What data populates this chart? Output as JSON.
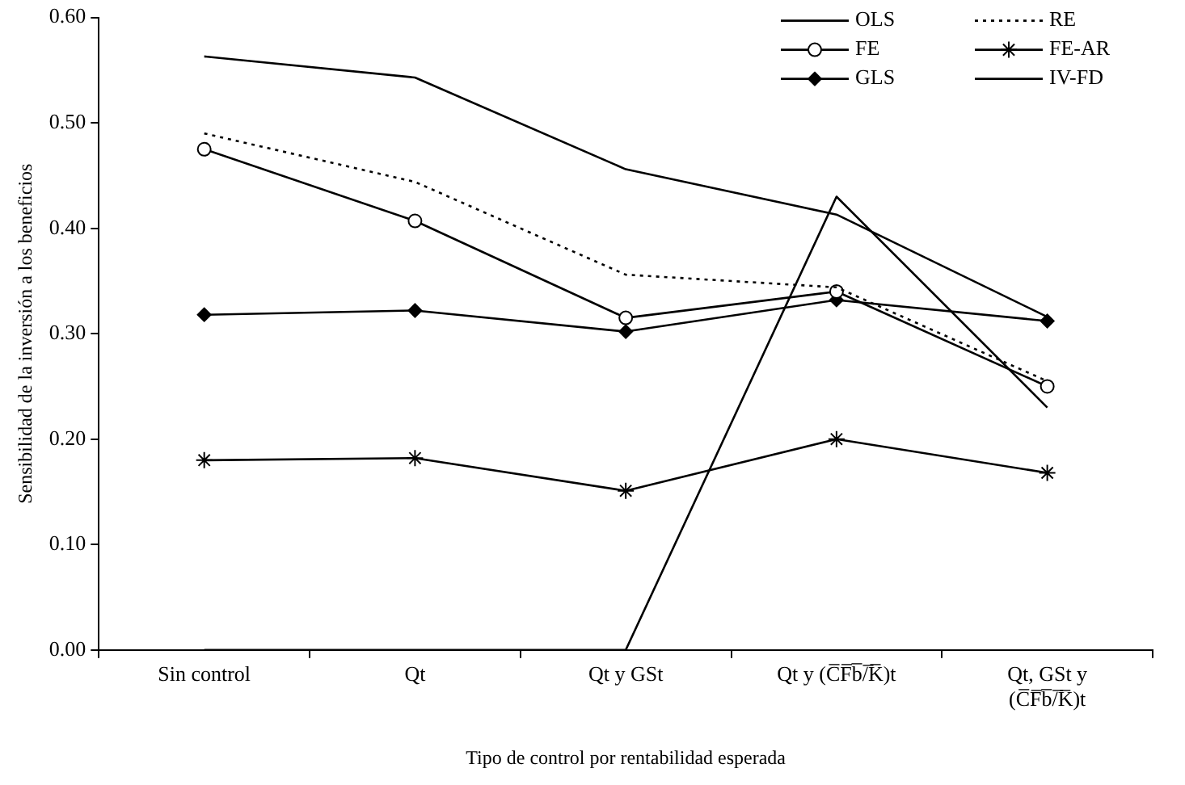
{
  "chart_data": {
    "type": "line",
    "xlabel": "Tipo de control por rentabilidad esperada",
    "ylabel": "Sensibilidad de la inversión a los beneficios",
    "categories": [
      "Sin control",
      "Qt",
      "Qt y GSt",
      "Qt y (C̅F̅b̅/̅K̅)t",
      "Qt, GSt y\n(C̅F̅b̅/̅K̅)t"
    ],
    "ylim": [
      0,
      0.6
    ],
    "yticks": [
      {
        "value": 0,
        "label": "0.00"
      },
      {
        "value": 0.1,
        "label": "0.10"
      },
      {
        "value": 0.2,
        "label": "0.20"
      },
      {
        "value": 0.3,
        "label": "0.30"
      },
      {
        "value": 0.4,
        "label": "0.40"
      },
      {
        "value": 0.5,
        "label": "0.50"
      },
      {
        "value": 0.6,
        "label": "0.60"
      }
    ],
    "grid": false,
    "legend": "top right",
    "series": [
      {
        "name": "OLS",
        "color": "#000000",
        "marker": "none",
        "line_style": "solid",
        "values": [
          0.563,
          0.543,
          0.456,
          0.413,
          0.316
        ]
      },
      {
        "name": "RE",
        "color": "#000000",
        "marker": "none",
        "line_style": "dotted",
        "values": [
          0.49,
          0.444,
          0.356,
          0.344,
          0.255
        ]
      },
      {
        "name": "FE",
        "color": "#000000",
        "marker": "circle",
        "line_style": "solid",
        "values": [
          0.475,
          0.407,
          0.315,
          0.34,
          0.25
        ]
      },
      {
        "name": "FE-AR",
        "color": "#000000",
        "marker": "cross",
        "line_style": "solid",
        "values": [
          0.18,
          0.182,
          0.151,
          0.2,
          0.168
        ]
      },
      {
        "name": "GLS",
        "color": "#000000",
        "marker": "diamond",
        "line_style": "solid",
        "values": [
          0.318,
          0.322,
          0.302,
          0.332,
          0.312
        ]
      },
      {
        "name": "IV-FD",
        "color": "#000000",
        "marker": "none",
        "line_style": "solid",
        "values": [
          0,
          0,
          0,
          0.43,
          0.23
        ]
      }
    ]
  }
}
